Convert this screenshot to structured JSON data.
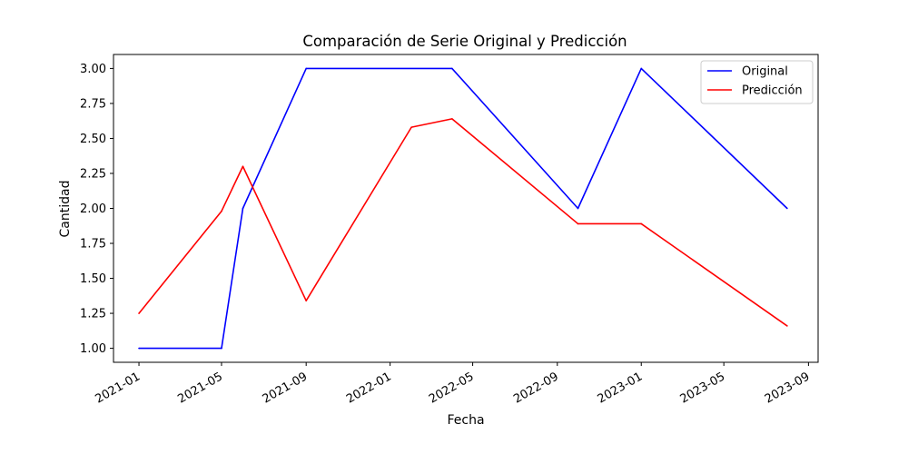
{
  "chart_data": {
    "type": "line",
    "title": "Comparación de Serie Original y Predicción",
    "xlabel": "Fecha",
    "ylabel": "Cantidad",
    "x_type": "date",
    "xlim": [
      "2020-11-25",
      "2023-09-15"
    ],
    "ylim": [
      0.9,
      3.1
    ],
    "x_ticks": [
      "2021-01",
      "2021-05",
      "2021-09",
      "2022-01",
      "2022-05",
      "2022-09",
      "2023-01",
      "2023-05",
      "2023-09"
    ],
    "y_ticks": [
      "1.00",
      "1.25",
      "1.50",
      "1.75",
      "2.00",
      "2.25",
      "2.50",
      "2.75",
      "3.00"
    ],
    "series": [
      {
        "name": "Original",
        "color": "#0000ff",
        "points": [
          {
            "x": "2021-01-01",
            "y": 1.0
          },
          {
            "x": "2021-05-01",
            "y": 1.0
          },
          {
            "x": "2021-06-01",
            "y": 2.0
          },
          {
            "x": "2021-09-01",
            "y": 3.0
          },
          {
            "x": "2022-04-01",
            "y": 3.0
          },
          {
            "x": "2022-10-01",
            "y": 2.0
          },
          {
            "x": "2023-01-01",
            "y": 3.0
          },
          {
            "x": "2023-08-01",
            "y": 2.0
          }
        ]
      },
      {
        "name": "Predicción",
        "color": "#ff0000",
        "points": [
          {
            "x": "2021-01-01",
            "y": 1.25
          },
          {
            "x": "2021-05-01",
            "y": 1.98
          },
          {
            "x": "2021-06-01",
            "y": 2.3
          },
          {
            "x": "2021-09-01",
            "y": 1.34
          },
          {
            "x": "2022-02-01",
            "y": 2.58
          },
          {
            "x": "2022-04-01",
            "y": 2.64
          },
          {
            "x": "2022-10-01",
            "y": 1.89
          },
          {
            "x": "2023-01-01",
            "y": 1.89
          },
          {
            "x": "2023-08-01",
            "y": 1.16
          }
        ]
      }
    ],
    "legend": "top-right",
    "grid": false
  }
}
